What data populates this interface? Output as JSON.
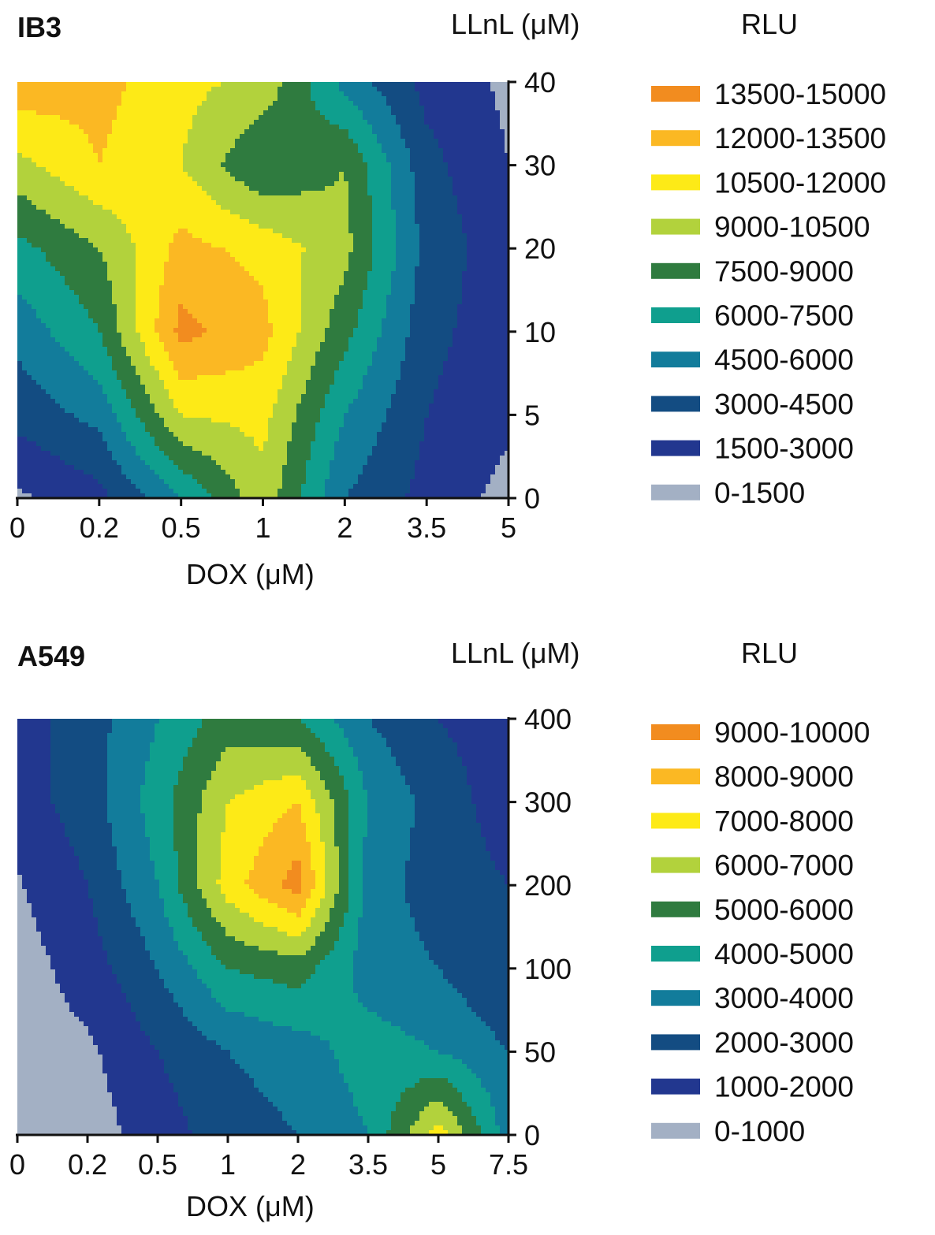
{
  "chart_data": [
    {
      "type": "heatmap",
      "panel_label": "IB3",
      "xlabel": "DOX (μM)",
      "ylabel": "LLnL (μM)",
      "legend_title": "RLU",
      "x_categories": [
        "0",
        "0.2",
        "0.5",
        "1",
        "2",
        "3.5",
        "5"
      ],
      "y_categories": [
        "0",
        "5",
        "10",
        "20",
        "30",
        "40"
      ],
      "levels": [
        {
          "label": "13500-15000",
          "color": "#f28c1f"
        },
        {
          "label": "12000-13500",
          "color": "#fbb823"
        },
        {
          "label": "10500-12000",
          "color": "#fdea17"
        },
        {
          "label": "9000-10500",
          "color": "#b2d23c"
        },
        {
          "label": "7500-9000",
          "color": "#2f7b3f"
        },
        {
          "label": "6000-7500",
          "color": "#0f9f8e"
        },
        {
          "label": "4500-6000",
          "color": "#127c9b"
        },
        {
          "label": "3000-4500",
          "color": "#134c82"
        },
        {
          "label": "1500-3000",
          "color": "#22378f"
        },
        {
          "label": "0-1500",
          "color": "#a3b0c4"
        }
      ],
      "z_rows_top_to_bottom": [
        [
          13000,
          12500,
          11000,
          10000,
          5500,
          2500,
          1200
        ],
        [
          10000,
          12000,
          10500,
          7500,
          9000,
          3500,
          1500
        ],
        [
          7000,
          9000,
          12500,
          11500,
          9500,
          4000,
          2000
        ],
        [
          5000,
          7500,
          14000,
          12500,
          8000,
          3500,
          2000
        ],
        [
          3500,
          5000,
          10500,
          11000,
          6000,
          3000,
          1800
        ],
        [
          1200,
          2500,
          6000,
          10000,
          4500,
          2500,
          1000
        ]
      ]
    },
    {
      "type": "heatmap",
      "panel_label": "A549",
      "xlabel": "DOX (μM)",
      "ylabel": "LLnL (μM)",
      "legend_title": "RLU",
      "x_categories": [
        "0",
        "0.2",
        "0.5",
        "1",
        "2",
        "3.5",
        "5",
        "7.5"
      ],
      "y_categories": [
        "0",
        "50",
        "100",
        "200",
        "300",
        "400"
      ],
      "levels": [
        {
          "label": "9000-10000",
          "color": "#f28c1f"
        },
        {
          "label": "8000-9000",
          "color": "#fbb823"
        },
        {
          "label": "7000-8000",
          "color": "#fdea17"
        },
        {
          "label": "6000-7000",
          "color": "#b2d23c"
        },
        {
          "label": "5000-6000",
          "color": "#2f7b3f"
        },
        {
          "label": "4000-5000",
          "color": "#0f9f8e"
        },
        {
          "label": "3000-4000",
          "color": "#127c9b"
        },
        {
          "label": "2000-3000",
          "color": "#134c82"
        },
        {
          "label": "1000-2000",
          "color": "#22378f"
        },
        {
          "label": "0-1000",
          "color": "#a3b0c4"
        }
      ],
      "z_rows_top_to_bottom": [
        [
          1500,
          2500,
          4000,
          5500,
          5000,
          3000,
          2000,
          1500
        ],
        [
          1500,
          2500,
          4500,
          7000,
          8000,
          4000,
          2500,
          1500
        ],
        [
          900,
          2000,
          4000,
          7500,
          9500,
          3500,
          2500,
          2000
        ],
        [
          500,
          1500,
          3000,
          5000,
          5500,
          3500,
          3000,
          2000
        ],
        [
          500,
          800,
          2000,
          3000,
          3500,
          4500,
          4000,
          3000
        ],
        [
          500,
          500,
          1500,
          2500,
          3000,
          4000,
          7500,
          3500
        ]
      ]
    }
  ]
}
